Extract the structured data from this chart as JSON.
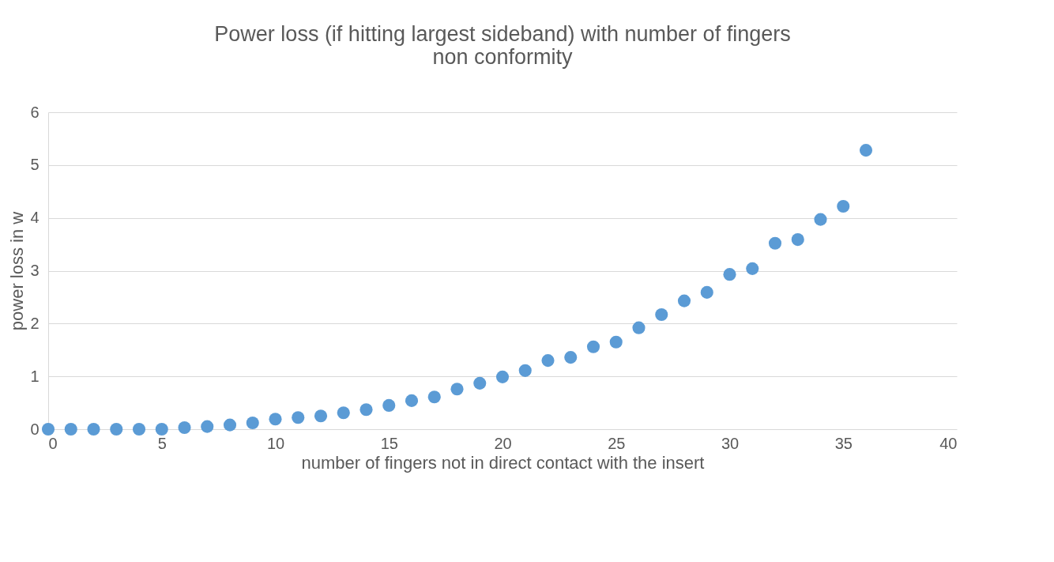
{
  "chart_data": {
    "type": "scatter",
    "title": [
      "Power loss  (if hitting largest sideband) with number of fingers",
      "non conformity"
    ],
    "xlabel": "number of fingers not in direct contact with the insert",
    "ylabel": "power loss in w",
    "x": [
      0,
      1,
      2,
      3,
      4,
      5,
      6,
      7,
      8,
      9,
      10,
      11,
      12,
      13,
      14,
      15,
      16,
      17,
      18,
      19,
      20,
      21,
      22,
      23,
      24,
      25,
      26,
      27,
      28,
      29,
      30,
      31,
      32,
      33,
      34,
      35,
      36
    ],
    "series": [
      {
        "color": "#5b9bd5",
        "values": [
          0,
          0,
          0,
          0,
          0,
          0,
          0.03,
          0.05,
          0.08,
          0.12,
          0.19,
          0.22,
          0.25,
          0.31,
          0.37,
          0.45,
          0.54,
          0.61,
          0.76,
          0.87,
          0.99,
          1.11,
          1.3,
          1.36,
          1.56,
          1.65,
          1.92,
          2.17,
          2.43,
          2.59,
          2.93,
          3.04,
          3.52,
          3.59,
          3.97,
          4.22,
          5.28
        ]
      }
    ],
    "xlim": [
      0,
      40
    ],
    "xticks": [
      0,
      5,
      10,
      15,
      20,
      25,
      30,
      35,
      40
    ],
    "ylim": [
      0,
      6
    ],
    "yticks": [
      0,
      1,
      2,
      3,
      4,
      5,
      6
    ],
    "grid": "y",
    "marker": "circle",
    "legend": false
  }
}
